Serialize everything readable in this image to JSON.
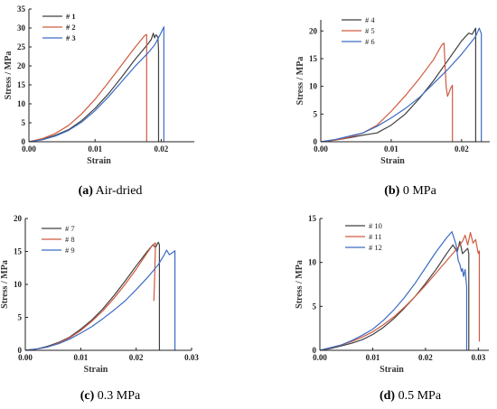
{
  "chart_data": [
    {
      "type": "line",
      "caption": {
        "letter": "(a)",
        "text": " Air-dried"
      },
      "xlabel": "Strain",
      "ylabel": "Stress / MPa",
      "xlim": [
        0,
        0.025
      ],
      "ylim": [
        0,
        35
      ],
      "xticks": [
        0.0,
        0.01,
        0.02
      ],
      "xtick_labels": [
        "0.00",
        "0.01",
        "0.02"
      ],
      "yticks": [
        0,
        5,
        10,
        15,
        20,
        25,
        30,
        35
      ],
      "ytick_labels": [
        "0",
        "5",
        "10",
        "15",
        "20",
        "25",
        "30",
        "35"
      ],
      "legend_bold": true,
      "series": [
        {
          "name": "# 1",
          "color": "#404040",
          "x": [
            0,
            0.002,
            0.004,
            0.006,
            0.008,
            0.01,
            0.012,
            0.014,
            0.016,
            0.018,
            0.0185,
            0.0188,
            0.019,
            0.0192,
            0.0195,
            0.0196,
            0.0196
          ],
          "y": [
            0,
            0.6,
            1.7,
            3.2,
            5.6,
            8.8,
            12.6,
            17.0,
            21.6,
            25.8,
            27.0,
            28.6,
            27.4,
            28.2,
            27.6,
            24,
            0
          ]
        },
        {
          "name": "# 2",
          "color": "#d05a40",
          "x": [
            0,
            0.002,
            0.004,
            0.006,
            0.008,
            0.01,
            0.012,
            0.014,
            0.016,
            0.0175,
            0.0178,
            0.0178
          ],
          "y": [
            0,
            0.8,
            2.2,
            4.3,
            7.4,
            11.2,
            15.6,
            20.2,
            24.8,
            28.0,
            28.3,
            0
          ]
        },
        {
          "name": "# 3",
          "color": "#3c6cc4",
          "x": [
            0,
            0.002,
            0.004,
            0.006,
            0.008,
            0.01,
            0.012,
            0.014,
            0.016,
            0.018,
            0.019,
            0.02,
            0.0204,
            0.0204
          ],
          "y": [
            0,
            0.5,
            1.5,
            3.0,
            5.2,
            8.2,
            11.8,
            15.8,
            19.8,
            23.4,
            25.5,
            28.8,
            30.3,
            0
          ]
        }
      ]
    },
    {
      "type": "line",
      "caption": {
        "letter": "(b)",
        "text": " 0 MPa"
      },
      "xlabel": "Strain",
      "ylabel": "Stress / MPa",
      "xlim": [
        0,
        0.024
      ],
      "ylim": [
        0,
        22
      ],
      "xticks": [
        0.0,
        0.01,
        0.02
      ],
      "xtick_labels": [
        "0.00",
        "0.01",
        "0.02"
      ],
      "yticks": [
        0,
        5,
        10,
        15,
        20
      ],
      "ytick_labels": [
        "0",
        "5",
        "10",
        "15",
        "20"
      ],
      "legend_bold": false,
      "series": [
        {
          "name": "# 4",
          "color": "#404040",
          "x": [
            0,
            0.002,
            0.004,
            0.006,
            0.007,
            0.008,
            0.01,
            0.012,
            0.014,
            0.016,
            0.018,
            0.02,
            0.021,
            0.0215,
            0.022,
            0.022
          ],
          "y": [
            0,
            0.3,
            0.7,
            1.2,
            1.4,
            1.6,
            3.0,
            5.0,
            7.8,
            11.0,
            14.6,
            18.2,
            19.6,
            19.4,
            20.5,
            0
          ]
        },
        {
          "name": "# 5",
          "color": "#d05a40",
          "x": [
            0,
            0.002,
            0.004,
            0.006,
            0.008,
            0.01,
            0.012,
            0.014,
            0.016,
            0.0172,
            0.0175,
            0.0178,
            0.018,
            0.0185,
            0.0187,
            0.0187
          ],
          "y": [
            0,
            0.3,
            0.8,
            1.6,
            3.0,
            5.5,
            8.3,
            11.4,
            14.8,
            17.5,
            17.8,
            10.0,
            8.2,
            9.8,
            10.2,
            0
          ]
        },
        {
          "name": "# 6",
          "color": "#3c6cc4",
          "x": [
            0,
            0.002,
            0.004,
            0.006,
            0.008,
            0.01,
            0.012,
            0.014,
            0.016,
            0.018,
            0.02,
            0.022,
            0.0225,
            0.0228,
            0.0228
          ],
          "y": [
            0,
            0.4,
            1.0,
            1.6,
            2.8,
            4.3,
            6.0,
            8.0,
            10.5,
            13.0,
            15.8,
            19.0,
            20.5,
            19.5,
            0
          ]
        }
      ]
    },
    {
      "type": "line",
      "caption": {
        "letter": "(c)",
        "text": " 0.3 MPa"
      },
      "xlabel": "Strain",
      "ylabel": "Stress / MPa",
      "xlim": [
        0,
        0.03
      ],
      "ylim": [
        0,
        20
      ],
      "xticks": [
        0.0,
        0.01,
        0.02,
        0.03
      ],
      "xtick_labels": [
        "0.00",
        "0.01",
        "0.02",
        "0.03"
      ],
      "yticks": [
        0,
        5,
        10,
        15,
        20
      ],
      "ytick_labels": [
        "0",
        "5",
        "10",
        "15",
        "20"
      ],
      "legend_bold": false,
      "series": [
        {
          "name": "# 7",
          "color": "#404040",
          "x": [
            0,
            0.002,
            0.004,
            0.006,
            0.008,
            0.01,
            0.012,
            0.014,
            0.016,
            0.018,
            0.02,
            0.022,
            0.023,
            0.0235,
            0.024,
            0.0242,
            0.0242
          ],
          "y": [
            0,
            0.2,
            0.6,
            1.2,
            2.0,
            3.2,
            4.6,
            6.3,
            8.3,
            10.5,
            12.8,
            15.0,
            16.0,
            15.6,
            16.4,
            16.0,
            0
          ]
        },
        {
          "name": "# 8",
          "color": "#d05a40",
          "x": [
            0,
            0.002,
            0.004,
            0.006,
            0.008,
            0.01,
            0.012,
            0.014,
            0.016,
            0.018,
            0.02,
            0.022,
            0.023,
            0.0235,
            0.0233,
            0.0232
          ],
          "y": [
            0,
            0.2,
            0.5,
            1.1,
            1.9,
            3.0,
            4.4,
            6.0,
            7.9,
            10.0,
            12.3,
            14.8,
            16.0,
            16.3,
            10.0,
            7.5
          ]
        },
        {
          "name": "# 9",
          "color": "#3c6cc4",
          "x": [
            0,
            0.002,
            0.004,
            0.006,
            0.008,
            0.01,
            0.012,
            0.014,
            0.016,
            0.018,
            0.02,
            0.022,
            0.024,
            0.025,
            0.0255,
            0.026,
            0.0265,
            0.027,
            0.027
          ],
          "y": [
            0,
            0.2,
            0.5,
            1.0,
            1.7,
            2.6,
            3.6,
            4.8,
            6.1,
            7.5,
            9.2,
            11.0,
            13.0,
            14.4,
            15.2,
            14.5,
            14.8,
            15.1,
            0
          ]
        }
      ]
    },
    {
      "type": "line",
      "caption": {
        "letter": "(d)",
        "text": " 0.5 MPa"
      },
      "xlabel": "Strain",
      "ylabel": "Stress / MPa",
      "xlim": [
        0,
        0.032
      ],
      "ylim": [
        0,
        15
      ],
      "xticks": [
        0.0,
        0.01,
        0.02,
        0.03
      ],
      "xtick_labels": [
        "0.00",
        "0.01",
        "0.02",
        "0.03"
      ],
      "yticks": [
        0,
        5,
        10,
        15
      ],
      "ytick_labels": [
        "0",
        "5",
        "10",
        "15"
      ],
      "legend_bold": false,
      "series": [
        {
          "name": "# 10",
          "color": "#404040",
          "x": [
            0,
            0.002,
            0.004,
            0.006,
            0.008,
            0.01,
            0.012,
            0.014,
            0.016,
            0.018,
            0.02,
            0.022,
            0.024,
            0.0252,
            0.026,
            0.0265,
            0.027,
            0.0275,
            0.028,
            0.0282,
            0.0282
          ],
          "y": [
            0,
            0.2,
            0.5,
            0.8,
            1.2,
            1.8,
            2.6,
            3.6,
            4.8,
            6.1,
            7.6,
            9.2,
            11.0,
            12.0,
            11.2,
            12.4,
            11.0,
            11.3,
            11.6,
            11.0,
            0
          ]
        },
        {
          "name": "# 11",
          "color": "#d05a40",
          "x": [
            0,
            0.002,
            0.004,
            0.006,
            0.008,
            0.01,
            0.012,
            0.014,
            0.016,
            0.018,
            0.02,
            0.022,
            0.024,
            0.026,
            0.027,
            0.0275,
            0.028,
            0.0285,
            0.029,
            0.0295,
            0.03,
            0.0302,
            0.0302
          ],
          "y": [
            0,
            0.3,
            0.6,
            1.0,
            1.5,
            2.1,
            2.9,
            3.8,
            4.9,
            6.1,
            7.4,
            8.8,
            10.2,
            11.6,
            12.4,
            13.1,
            12.0,
            13.4,
            12.2,
            12.6,
            11.0,
            11.3,
            1.0
          ]
        },
        {
          "name": "# 12",
          "color": "#3c6cc4",
          "x": [
            0,
            0.002,
            0.004,
            0.006,
            0.008,
            0.01,
            0.012,
            0.014,
            0.016,
            0.018,
            0.02,
            0.022,
            0.024,
            0.025,
            0.0258,
            0.0262,
            0.0265,
            0.0268,
            0.027,
            0.0272,
            0.0275,
            0.0278,
            0.0278
          ],
          "y": [
            0,
            0.3,
            0.6,
            1.1,
            1.7,
            2.4,
            3.4,
            4.6,
            6.0,
            7.6,
            9.4,
            11.2,
            12.8,
            13.5,
            12.0,
            10.2,
            9.8,
            9.0,
            9.3,
            8.4,
            9.2,
            7.2,
            0
          ]
        }
      ]
    }
  ]
}
